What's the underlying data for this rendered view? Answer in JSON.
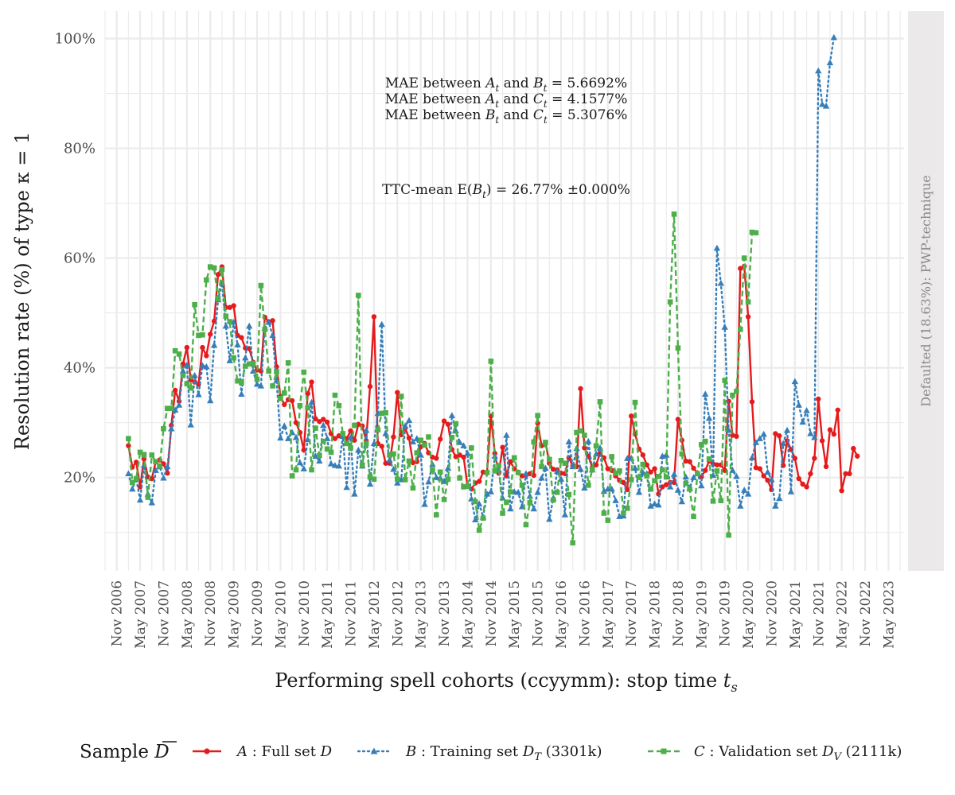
{
  "chart_data": {
    "type": "line",
    "xlabel": "Performing spell cohorts (ccyymm): stop time t_s",
    "ylabel": "Resolution rate (%) of type κ = 1",
    "facet_label": "Defaulted (18.63%): PWP-technique",
    "y_ticks": [
      {
        "value": 20,
        "label": "20%"
      },
      {
        "value": 40,
        "label": "40%"
      },
      {
        "value": 60,
        "label": "60%"
      },
      {
        "value": 80,
        "label": "80%"
      },
      {
        "value": 100,
        "label": "100%"
      }
    ],
    "ylim": [
      3,
      105
    ],
    "x_ticks": [
      {
        "month_index": 0,
        "label": "Nov 2006"
      },
      {
        "month_index": 6,
        "label": "May 2007"
      },
      {
        "month_index": 12,
        "label": "Nov 2007"
      },
      {
        "month_index": 18,
        "label": "May 2008"
      },
      {
        "month_index": 24,
        "label": "Nov 2008"
      },
      {
        "month_index": 30,
        "label": "May 2009"
      },
      {
        "month_index": 36,
        "label": "Nov 2009"
      },
      {
        "month_index": 42,
        "label": "May 2010"
      },
      {
        "month_index": 48,
        "label": "Nov 2010"
      },
      {
        "month_index": 54,
        "label": "May 2011"
      },
      {
        "month_index": 60,
        "label": "Nov 2011"
      },
      {
        "month_index": 66,
        "label": "May 2012"
      },
      {
        "month_index": 72,
        "label": "Nov 2012"
      },
      {
        "month_index": 78,
        "label": "May 2013"
      },
      {
        "month_index": 84,
        "label": "Nov 2013"
      },
      {
        "month_index": 90,
        "label": "May 2014"
      },
      {
        "month_index": 96,
        "label": "Nov 2014"
      },
      {
        "month_index": 102,
        "label": "May 2015"
      },
      {
        "month_index": 108,
        "label": "Nov 2015"
      },
      {
        "month_index": 114,
        "label": "May 2016"
      },
      {
        "month_index": 120,
        "label": "Nov 2016"
      },
      {
        "month_index": 126,
        "label": "May 2017"
      },
      {
        "month_index": 132,
        "label": "Nov 2017"
      },
      {
        "month_index": 138,
        "label": "May 2018"
      },
      {
        "month_index": 144,
        "label": "Nov 2018"
      },
      {
        "month_index": 150,
        "label": "May 2019"
      },
      {
        "month_index": 156,
        "label": "Nov 2019"
      },
      {
        "month_index": 162,
        "label": "May 2020"
      },
      {
        "month_index": 168,
        "label": "Nov 2020"
      },
      {
        "month_index": 174,
        "label": "May 2021"
      },
      {
        "month_index": 180,
        "label": "Nov 2021"
      },
      {
        "month_index": 186,
        "label": "May 2022"
      },
      {
        "month_index": 192,
        "label": "Nov 2022"
      },
      {
        "month_index": 198,
        "label": "May 2023"
      }
    ],
    "xlim_month_index": [
      -3,
      202
    ],
    "series_start_month_index": 3,
    "annotations": {
      "mae_ab": {
        "prefix": "MAE between ",
        "s1": "A",
        "mid": " and ",
        "s2": "B",
        "sub": "t",
        "value": " = 5.6692%"
      },
      "mae_ac": {
        "prefix": "MAE between ",
        "s1": "A",
        "mid": " and ",
        "s2": "C",
        "sub": "t",
        "value": " = 4.1577%"
      },
      "mae_bc": {
        "prefix": "MAE between ",
        "s1": "B",
        "mid": " and ",
        "s2": "C",
        "sub": "t",
        "value": " = 5.3076%"
      },
      "ttc": {
        "prefix": "TTC-mean E(",
        "sym": "B",
        "sub": "t",
        "value": ") = 26.77% ±0.000%"
      }
    },
    "legend": {
      "title": "Sample ",
      "title_symbol": "D",
      "items": [
        {
          "key": "A",
          "symbol": "A",
          "text": " : Full set ",
          "set_symbol": "D",
          "set_sub": "",
          "suffix": ""
        },
        {
          "key": "B",
          "symbol": "B",
          "text": " : Training set ",
          "set_symbol": "D",
          "set_sub": "T",
          "suffix": " (3301k)"
        },
        {
          "key": "C",
          "symbol": "C",
          "text": " : Validation set ",
          "set_symbol": "D",
          "set_sub": "V",
          "suffix": " (2111k)"
        }
      ]
    },
    "series": [
      {
        "key": "A",
        "name": "Full set",
        "color": "#e41a1c",
        "dash": "solid",
        "marker": "circle",
        "values": [
          25.8,
          21.9,
          22.8,
          18.3,
          23.4,
          20.1,
          19.8,
          22.9,
          23.2,
          22.5,
          20.8,
          29.5,
          35.9,
          33.9,
          40.7,
          43.7,
          37.8,
          37.4,
          37.0,
          43.7,
          42.2,
          46.1,
          48.5,
          57.0,
          58.4,
          51.0,
          51.0,
          51.3,
          45.9,
          45.5,
          43.6,
          43.5,
          41.0,
          39.6,
          39.4,
          49.2,
          48.4,
          48.6,
          40.2,
          34.8,
          33.3,
          34.2,
          34.0,
          30.0,
          28.2,
          25.0,
          35.3,
          37.4,
          30.7,
          30.2,
          30.6,
          30.1,
          28.0,
          27.1,
          27.6,
          27.5,
          27.1,
          28.5,
          26.8,
          29.7,
          29.4,
          26.7,
          36.6,
          49.3,
          26.2,
          25.7,
          22.6,
          22.6,
          27.4,
          35.5,
          27.8,
          29.0,
          27.2,
          22.7,
          22.9,
          25.6,
          26.2,
          24.5,
          23.7,
          23.5,
          27.0,
          30.3,
          29.7,
          25.1,
          23.8,
          24.1,
          23.7,
          18.4,
          17.9,
          19.0,
          19.3,
          21.0,
          20.9,
          31.2,
          24.4,
          20.8,
          25.5,
          20.3,
          22.9,
          21.6,
          21.0,
          20.3,
          20.4,
          20.7,
          20.4,
          29.9,
          25.8,
          26.4,
          22.6,
          21.5,
          21.4,
          20.8,
          20.7,
          23.6,
          22.1,
          22.0,
          36.2,
          25.4,
          23.9,
          21.8,
          22.3,
          24.4,
          23.6,
          21.6,
          21.3,
          20.3,
          19.5,
          19.1,
          17.8,
          31.2,
          27.9,
          25.2,
          24.1,
          22.3,
          21.0,
          21.6,
          17.0,
          18.3,
          18.7,
          19.1,
          19.1,
          30.6,
          26.8,
          23.0,
          22.9,
          21.7,
          20.8,
          20.1,
          21.3,
          23.0,
          22.5,
          22.3,
          22.3,
          21.3,
          33.9,
          27.7,
          27.5,
          58.1,
          58.5,
          49.3,
          33.8,
          21.8,
          21.6,
          20.3,
          19.5,
          17.8,
          28.0,
          27.6,
          22.2,
          26.7,
          25.1,
          23.5,
          19.8,
          18.8,
          18.3,
          20.7,
          23.5,
          34.3,
          26.7,
          22.0,
          28.7,
          27.9,
          32.3,
          17.6,
          20.7,
          20.7,
          25.3,
          23.9
        ]
      },
      {
        "key": "B",
        "name": "Training set",
        "color": "#377eb8",
        "dash": "dotted",
        "marker": "triangle",
        "values": [
          20.7,
          17.9,
          19.8,
          15.9,
          22.2,
          17.0,
          15.4,
          21.3,
          22.0,
          19.9,
          22.0,
          28.9,
          32.3,
          33.2,
          39.4,
          40.5,
          29.6,
          38.6,
          35.1,
          40.4,
          40.2,
          34.0,
          44.1,
          52.4,
          55.4,
          47.6,
          41.3,
          48.3,
          44.2,
          35.2,
          41.8,
          47.6,
          39.4,
          37.0,
          36.7,
          47.3,
          48.3,
          45.9,
          37.7,
          27.2,
          29.4,
          27.1,
          28.2,
          27.3,
          22.7,
          21.6,
          26.9,
          33.7,
          23.9,
          23.0,
          29.5,
          27.1,
          22.5,
          22.2,
          22.1,
          27.5,
          18.2,
          27.3,
          17.0,
          25.0,
          22.1,
          28.6,
          18.8,
          26.2,
          31.7,
          47.9,
          28.0,
          23.2,
          21.5,
          19.0,
          19.6,
          29.4,
          30.4,
          26.5,
          27.1,
          24.1,
          15.1,
          19.2,
          22.4,
          20.0,
          19.9,
          19.3,
          21.7,
          31.3,
          28.5,
          26.4,
          25.8,
          24.4,
          16.1,
          12.3,
          15.2,
          12.8,
          17.0,
          17.4,
          23.9,
          21.4,
          16.3,
          27.7,
          14.3,
          17.4,
          17.3,
          14.7,
          20.7,
          16.6,
          14.3,
          17.3,
          19.9,
          21.7,
          12.4,
          16.2,
          21.1,
          19.7,
          13.2,
          26.5,
          22.0,
          25.3,
          21.5,
          18.1,
          26.6,
          21.4,
          24.3,
          25.4,
          17.5,
          17.9,
          17.9,
          15.8,
          12.9,
          13.0,
          23.5,
          23.5,
          21.7,
          17.3,
          20.9,
          20.7,
          14.8,
          15.2,
          15.0,
          23.9,
          24.1,
          18.3,
          20.6,
          17.7,
          15.6,
          20.1,
          18.1,
          20.0,
          20.8,
          18.5,
          35.2,
          30.8,
          20.4,
          61.8,
          55.4,
          47.4,
          28.6,
          21.3,
          20.2,
          14.8,
          17.7,
          17.0,
          23.6,
          26.4,
          27.1,
          27.9,
          21.0,
          19.6,
          14.8,
          16.2,
          26.2,
          28.6,
          17.4,
          37.5,
          33.2,
          30.1,
          32.2,
          28.0,
          27.3,
          94.1,
          88.0,
          87.7,
          95.6,
          100.2
        ]
      },
      {
        "key": "C",
        "name": "Validation set",
        "color": "#4daf4a",
        "dash": "dashed",
        "marker": "square",
        "values": [
          27.1,
          19.1,
          19.8,
          24.6,
          24.2,
          16.4,
          24.1,
          22.9,
          22.1,
          28.9,
          32.6,
          32.6,
          43.1,
          42.5,
          38.6,
          37.1,
          36.3,
          51.5,
          45.9,
          46.0,
          56.0,
          58.4,
          58.2,
          52.6,
          57.9,
          49.4,
          48.4,
          41.8,
          37.6,
          37.3,
          40.3,
          40.7,
          40.8,
          37.9,
          55.0,
          47.0,
          39.4,
          36.7,
          39.3,
          34.4,
          35.4,
          40.9,
          20.3,
          21.4,
          33.1,
          39.2,
          32.7,
          21.4,
          29.0,
          24.0,
          26.6,
          25.2,
          24.6,
          35.0,
          33.1,
          28.0,
          26.2,
          25.4,
          29.5,
          53.2,
          22.3,
          26.2,
          20.1,
          19.7,
          28.7,
          31.7,
          31.8,
          24.1,
          24.3,
          19.7,
          34.8,
          19.6,
          23.0,
          18.1,
          24.5,
          26.8,
          25.9,
          27.4,
          21.4,
          13.2,
          21.0,
          16.0,
          19.7,
          27.3,
          29.8,
          19.9,
          18.3,
          18.4,
          25.4,
          15.6,
          10.4,
          12.6,
          20.9,
          41.2,
          21.2,
          22.2,
          13.5,
          15.5,
          17.4,
          23.6,
          20.9,
          18.6,
          11.4,
          15.4,
          26.5,
          31.3,
          22.0,
          26.4,
          23.3,
          15.9,
          17.3,
          23.1,
          22.6,
          16.9,
          8.1,
          28.2,
          28.5,
          27.7,
          18.6,
          21.4,
          25.8,
          33.8,
          13.5,
          12.2,
          23.8,
          20.8,
          21.2,
          13.5,
          14.4,
          19.6,
          33.7,
          20.0,
          22.4,
          20.3,
          17.9,
          19.4,
          20.2,
          21.4,
          20.1,
          52.0,
          68.0,
          43.6,
          24.3,
          18.9,
          17.9,
          12.9,
          20.7,
          26.0,
          26.6,
          23.4,
          15.7,
          21.2,
          15.8,
          37.7,
          9.5,
          35.0,
          35.7,
          47.0,
          60.0,
          52.0,
          64.7,
          64.6
        ]
      }
    ]
  }
}
